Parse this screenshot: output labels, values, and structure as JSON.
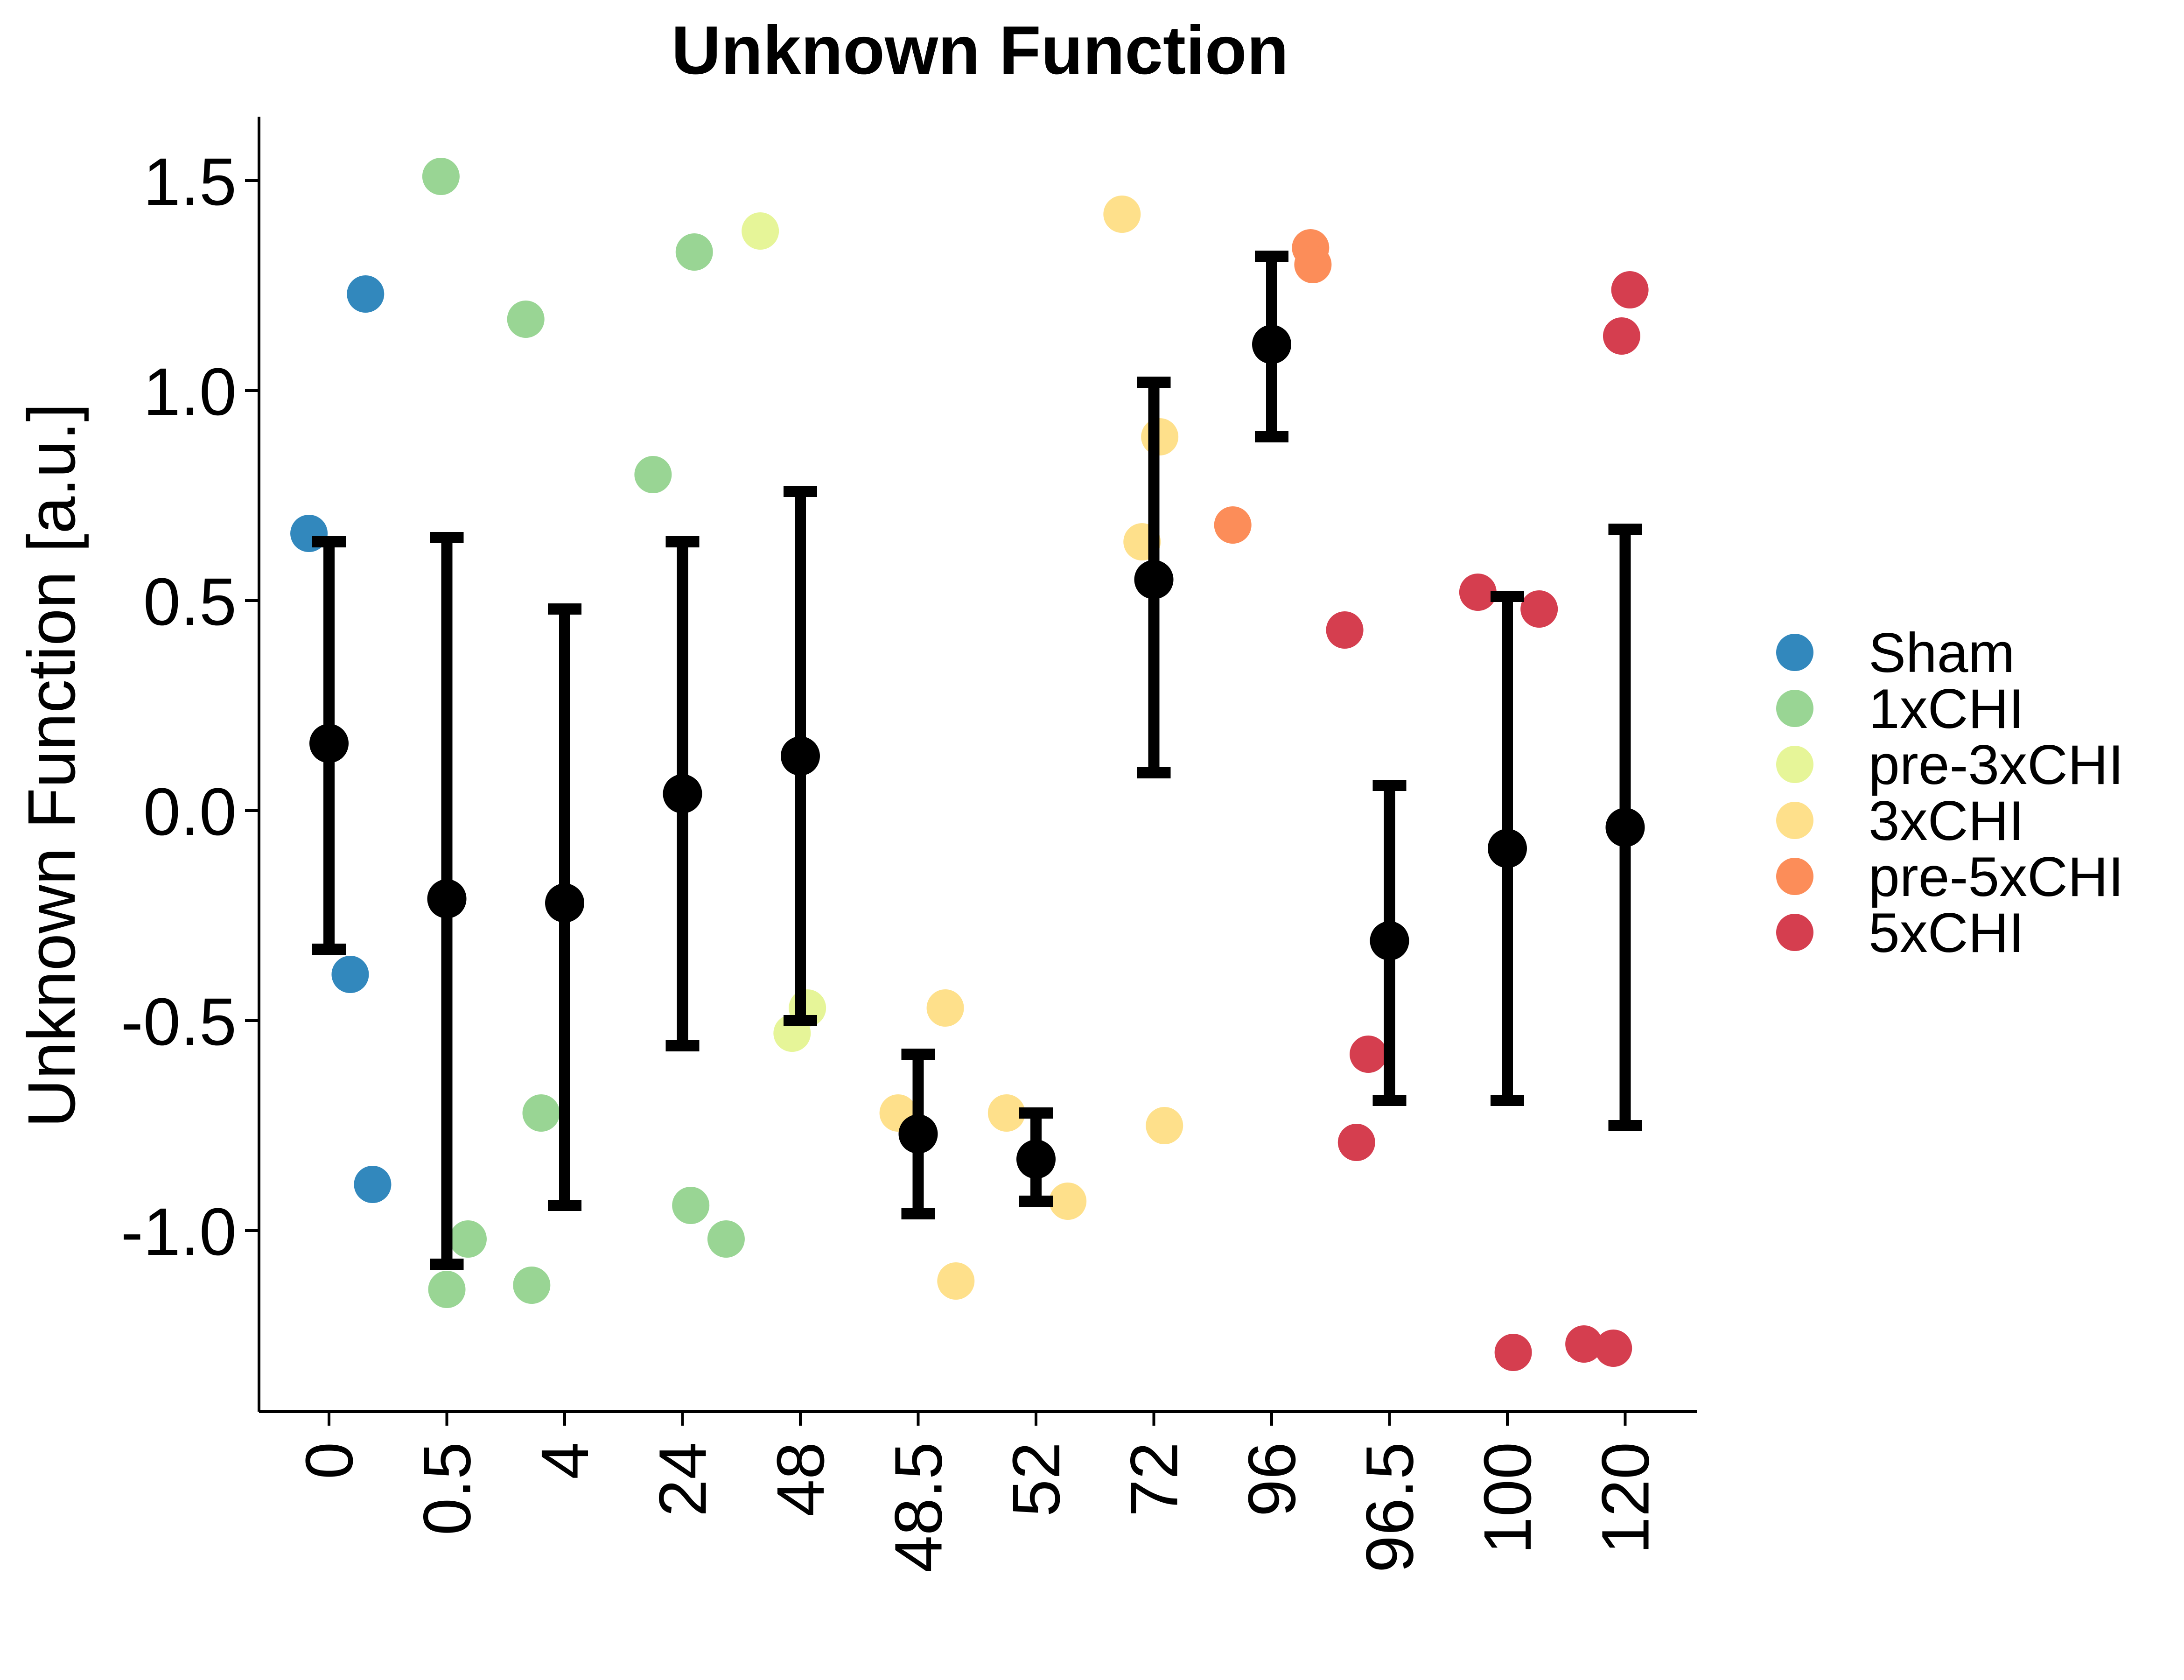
{
  "chart_data": {
    "type": "scatter",
    "title": "Unknown Function",
    "xlabel": "",
    "ylabel": "Unknown Function [a.u.]",
    "ylim": [
      -1.43,
      1.66
    ],
    "yticks": [
      1.5,
      1.0,
      0.5,
      0.0,
      -0.5,
      -1.0
    ],
    "ytick_labels": [
      "1.5",
      "1.0",
      "0.5",
      "0.0",
      "-0.5",
      "-1.0"
    ],
    "categories": [
      "0",
      "0.5",
      "4",
      "24",
      "48",
      "48.5",
      "52",
      "72",
      "96",
      "96.5",
      "100",
      "120"
    ],
    "grid": false,
    "legend_position": "right",
    "groups": [
      {
        "name": "Sham",
        "color": "#3288bd"
      },
      {
        "name": "1xCHI",
        "color": "#99d594"
      },
      {
        "name": "pre-3xCHI",
        "color": "#e6f598"
      },
      {
        "name": "3xCHI",
        "color": "#fee08b"
      },
      {
        "name": "pre-5xCHI",
        "color": "#fc8d59"
      },
      {
        "name": "5xCHI",
        "color": "#d53e4f"
      }
    ],
    "points": [
      {
        "category": "0",
        "jitter": -0.17,
        "y": 0.66,
        "group": "Sham"
      },
      {
        "category": "0",
        "jitter": 0.31,
        "y": 1.23,
        "group": "Sham"
      },
      {
        "category": "0",
        "jitter": 0.18,
        "y": -0.39,
        "group": "Sham"
      },
      {
        "category": "0",
        "jitter": 0.37,
        "y": -0.89,
        "group": "Sham"
      },
      {
        "category": "0.5",
        "jitter": -0.05,
        "y": 1.51,
        "group": "1xCHI"
      },
      {
        "category": "0.5",
        "jitter": 0.18,
        "y": -1.02,
        "group": "1xCHI"
      },
      {
        "category": "0.5",
        "jitter": 0.0,
        "y": -1.14,
        "group": "1xCHI"
      },
      {
        "category": "4",
        "jitter": -0.33,
        "y": 1.17,
        "group": "1xCHI"
      },
      {
        "category": "4",
        "jitter": -0.2,
        "y": -0.72,
        "group": "1xCHI"
      },
      {
        "category": "4",
        "jitter": -0.28,
        "y": -1.13,
        "group": "1xCHI"
      },
      {
        "category": "24",
        "jitter": -0.25,
        "y": 0.8,
        "group": "1xCHI"
      },
      {
        "category": "24",
        "jitter": 0.1,
        "y": 1.33,
        "group": "1xCHI"
      },
      {
        "category": "24",
        "jitter": 0.07,
        "y": -0.94,
        "group": "1xCHI"
      },
      {
        "category": "24",
        "jitter": 0.37,
        "y": -1.02,
        "group": "1xCHI"
      },
      {
        "category": "48",
        "jitter": -0.34,
        "y": 1.38,
        "group": "pre-3xCHI"
      },
      {
        "category": "48",
        "jitter": -0.07,
        "y": -0.53,
        "group": "pre-3xCHI"
      },
      {
        "category": "48",
        "jitter": 0.06,
        "y": -0.47,
        "group": "pre-3xCHI"
      },
      {
        "category": "48.5",
        "jitter": -0.17,
        "y": -0.72,
        "group": "3xCHI"
      },
      {
        "category": "48.5",
        "jitter": 0.23,
        "y": -0.47,
        "group": "3xCHI"
      },
      {
        "category": "48.5",
        "jitter": 0.32,
        "y": -1.12,
        "group": "3xCHI"
      },
      {
        "category": "52",
        "jitter": -0.25,
        "y": -0.72,
        "group": "3xCHI"
      },
      {
        "category": "52",
        "jitter": 0.27,
        "y": -0.93,
        "group": "3xCHI"
      },
      {
        "category": "72",
        "jitter": -0.27,
        "y": 1.42,
        "group": "3xCHI"
      },
      {
        "category": "72",
        "jitter": 0.05,
        "y": 0.89,
        "group": "3xCHI"
      },
      {
        "category": "72",
        "jitter": -0.1,
        "y": 0.64,
        "group": "3xCHI"
      },
      {
        "category": "72",
        "jitter": 0.09,
        "y": -0.75,
        "group": "3xCHI"
      },
      {
        "category": "96",
        "jitter": -0.33,
        "y": 0.68,
        "group": "pre-5xCHI"
      },
      {
        "category": "96",
        "jitter": 0.33,
        "y": 1.34,
        "group": "pre-5xCHI"
      },
      {
        "category": "96",
        "jitter": 0.35,
        "y": 1.3,
        "group": "pre-5xCHI"
      },
      {
        "category": "96.5",
        "jitter": -0.38,
        "y": 0.43,
        "group": "5xCHI"
      },
      {
        "category": "96.5",
        "jitter": -0.18,
        "y": -0.58,
        "group": "5xCHI"
      },
      {
        "category": "96.5",
        "jitter": -0.28,
        "y": -0.79,
        "group": "5xCHI"
      },
      {
        "category": "100",
        "jitter": -0.25,
        "y": 0.52,
        "group": "5xCHI"
      },
      {
        "category": "100",
        "jitter": 0.27,
        "y": 0.48,
        "group": "5xCHI"
      },
      {
        "category": "100",
        "jitter": 0.05,
        "y": -1.29,
        "group": "5xCHI"
      },
      {
        "category": "120",
        "jitter": 0.04,
        "y": 1.24,
        "group": "5xCHI"
      },
      {
        "category": "120",
        "jitter": -0.03,
        "y": 1.13,
        "group": "5xCHI"
      },
      {
        "category": "120",
        "jitter": -0.35,
        "y": -1.27,
        "group": "5xCHI"
      },
      {
        "category": "120",
        "jitter": -0.1,
        "y": -1.28,
        "group": "5xCHI"
      }
    ],
    "summary": [
      {
        "category": "0",
        "mean": 0.16,
        "lower": -0.33,
        "upper": 0.64
      },
      {
        "category": "0.5",
        "mean": -0.21,
        "lower": -1.08,
        "upper": 0.65
      },
      {
        "category": "4",
        "mean": -0.22,
        "lower": -0.94,
        "upper": 0.48
      },
      {
        "category": "24",
        "mean": 0.04,
        "lower": -0.56,
        "upper": 0.64
      },
      {
        "category": "48",
        "mean": 0.13,
        "lower": -0.5,
        "upper": 0.76
      },
      {
        "category": "48.5",
        "mean": -0.77,
        "lower": -0.96,
        "upper": -0.58
      },
      {
        "category": "52",
        "mean": -0.83,
        "lower": -0.93,
        "upper": -0.72
      },
      {
        "category": "72",
        "mean": 0.55,
        "lower": 0.09,
        "upper": 1.02
      },
      {
        "category": "96",
        "mean": 1.11,
        "lower": 0.89,
        "upper": 1.32
      },
      {
        "category": "96.5",
        "mean": -0.31,
        "lower": -0.69,
        "upper": 0.06
      },
      {
        "category": "100",
        "mean": -0.09,
        "lower": -0.69,
        "upper": 0.51
      },
      {
        "category": "120",
        "mean": -0.04,
        "lower": -0.75,
        "upper": 0.67
      }
    ]
  }
}
